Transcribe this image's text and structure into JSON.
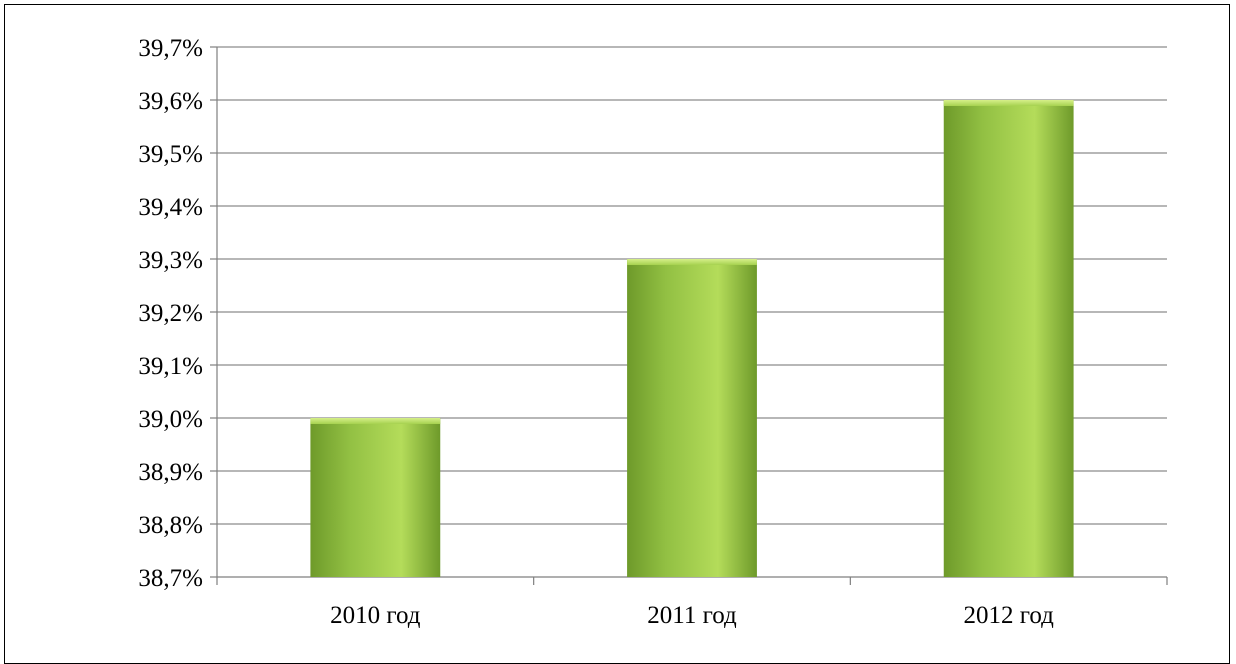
{
  "chart_data": {
    "type": "bar",
    "title": "",
    "xlabel": "",
    "ylabel": "",
    "categories": [
      "2010 год",
      "2011 год",
      "2012 год"
    ],
    "values": [
      39.0,
      39.3,
      39.6
    ],
    "ylim": [
      38.7,
      39.7
    ],
    "ytick_step": 0.1,
    "ytick_labels": [
      "38,7%",
      "38,8%",
      "38,9%",
      "39,0%",
      "39,1%",
      "39,2%",
      "39,3%",
      "39,4%",
      "39,5%",
      "39,6%",
      "39,7%"
    ],
    "grid": true,
    "legend": "none",
    "colors": {
      "bar_light": "#b4dc5a",
      "bar_mid": "#92c043",
      "bar_dark": "#6e9a2a",
      "grid": "#8c8c8c"
    }
  }
}
